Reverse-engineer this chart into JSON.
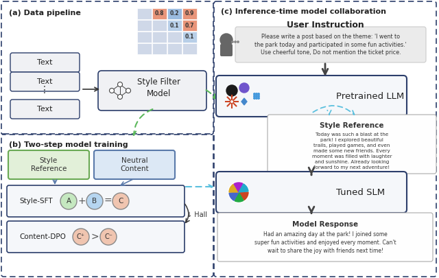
{
  "title_a": "(a) Data pipeline",
  "title_b": "(b) Two-step model training",
  "title_c": "(c) Inference-time model collaboration",
  "bg_color": "#ffffff",
  "panel_border_color": "#2c3e6b",
  "green_dashed_color": "#5cb85c",
  "blue_dashed_color": "#5bc0de",
  "cell_vals": [
    [
      null,
      0.8,
      0.2,
      0.9
    ],
    [
      null,
      null,
      0.1,
      0.7
    ],
    [
      null,
      null,
      null,
      0.1
    ],
    [
      null,
      null,
      null,
      null
    ]
  ],
  "user_instruction": "Please write a post based on the theme: 'I went to\nthe park today and participated in some fun activities.'\nUse cheerful tone, Do not mention the ticket price.",
  "style_reference_text": "Today was such a blast at the\npark! I explored beautiful\ntrails, played games, and even\nmade some new friends. Every\nmoment was filled with laughter\nand sunshine. Already looking\nforward to my next adventure!",
  "model_response_text": "Had an amazing day at the park! I joined some\nsuper fun activities and enjoyed every moment. Can't\nwait to share the joy with friends next time!"
}
